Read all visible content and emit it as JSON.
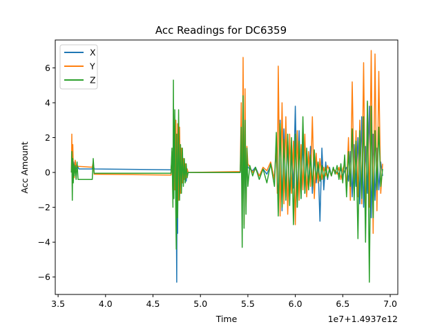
{
  "chart_data": {
    "type": "line",
    "title": "Acc Readings for DC6359",
    "xlabel": "Time",
    "ylabel": "Acc Amount",
    "x_offset_label": "1e7+1.4937e12",
    "xlim": [
      3.47,
      7.08
    ],
    "ylim": [
      -7.0,
      7.6
    ],
    "x_ticks": [
      3.5,
      4.0,
      4.5,
      5.0,
      5.5,
      6.0,
      6.5,
      7.0
    ],
    "x_tick_labels": [
      "3.5",
      "4.0",
      "4.5",
      "5.0",
      "5.5",
      "6.0",
      "6.5",
      "7.0"
    ],
    "y_ticks": [
      -6,
      -4,
      -2,
      0,
      2,
      4,
      6
    ],
    "y_tick_labels": [
      "−6",
      "−4",
      "−2",
      "0",
      "2",
      "4",
      "6"
    ],
    "grid": false,
    "legend_position": "upper-left",
    "series": [
      {
        "name": "X",
        "color": "#1f77b4",
        "x": [
          3.64,
          3.65,
          3.655,
          3.66,
          3.665,
          3.67,
          3.68,
          3.69,
          3.7,
          3.71,
          3.72,
          3.86,
          3.87,
          3.88,
          4.69,
          4.7,
          4.71,
          4.72,
          4.73,
          4.74,
          4.745,
          4.75,
          4.755,
          4.76,
          4.765,
          4.77,
          4.78,
          4.79,
          4.8,
          4.81,
          4.82,
          4.83,
          4.84,
          4.85,
          4.86,
          4.87,
          5.42,
          5.43,
          5.44,
          5.45,
          5.46,
          5.47,
          5.48,
          5.49,
          5.5,
          5.52,
          5.55,
          5.58,
          5.62,
          5.66,
          5.7,
          5.74,
          5.78,
          5.8,
          5.82,
          5.84,
          5.86,
          5.88,
          5.9,
          5.92,
          5.94,
          5.96,
          5.98,
          6.0,
          6.02,
          6.04,
          6.06,
          6.08,
          6.1,
          6.12,
          6.14,
          6.16,
          6.18,
          6.2,
          6.22,
          6.24,
          6.26,
          6.28,
          6.3,
          6.32,
          6.34,
          6.36,
          6.38,
          6.4,
          6.42,
          6.44,
          6.46,
          6.48,
          6.5,
          6.52,
          6.54,
          6.56,
          6.58,
          6.6,
          6.62,
          6.64,
          6.66,
          6.68,
          6.7,
          6.72,
          6.74,
          6.76,
          6.78,
          6.8,
          6.82,
          6.84,
          6.86,
          6.88,
          6.9,
          6.92
        ],
        "y": [
          0.0,
          0.4,
          0.9,
          -0.5,
          0.6,
          0.3,
          0.5,
          0.2,
          0.4,
          0.3,
          0.2,
          0.2,
          0.5,
          0.2,
          0.15,
          0.8,
          -1.2,
          1.4,
          -0.8,
          3.0,
          -2.0,
          -6.3,
          1.8,
          -3.5,
          2.5,
          -1.5,
          1.2,
          -0.8,
          1.0,
          -0.6,
          0.7,
          -0.3,
          0.4,
          -0.5,
          0.2,
          0.0,
          0.0,
          2.0,
          -1.8,
          2.6,
          -2.2,
          1.5,
          -1.0,
          0.6,
          0.3,
          0.2,
          0.1,
          0.3,
          -0.2,
          0.2,
          -0.1,
          0.4,
          -0.3,
          1.2,
          -1.8,
          3.0,
          -2.2,
          2.5,
          -1.4,
          1.8,
          -1.6,
          1.2,
          -0.9,
          3.8,
          -2.0,
          2.4,
          -1.5,
          1.9,
          -1.2,
          1.0,
          -0.8,
          1.5,
          -1.2,
          0.9,
          -0.6,
          0.4,
          -2.8,
          1.4,
          -1.0,
          0.6,
          -0.4,
          0.3,
          -0.2,
          0.2,
          0.1,
          0.0,
          -0.1,
          0.2,
          -0.2,
          0.1,
          0.3,
          -0.5,
          1.2,
          -1.4,
          1.6,
          -0.8,
          2.0,
          -1.8,
          3.2,
          -2.0,
          1.5,
          -1.2,
          3.8,
          -2.6,
          2.2,
          -1.6,
          1.4,
          -1.0,
          0.6,
          -0.2
        ]
      },
      {
        "name": "Y",
        "color": "#ff7f0e",
        "x": [
          3.64,
          3.645,
          3.65,
          3.655,
          3.66,
          3.67,
          3.68,
          3.69,
          3.7,
          3.71,
          3.86,
          3.87,
          3.88,
          4.69,
          4.7,
          4.71,
          4.72,
          4.73,
          4.74,
          4.75,
          4.76,
          4.77,
          4.78,
          4.79,
          4.8,
          4.81,
          4.82,
          4.83,
          4.84,
          4.85,
          4.86,
          4.87,
          5.42,
          5.43,
          5.44,
          5.45,
          5.46,
          5.47,
          5.48,
          5.49,
          5.5,
          5.52,
          5.55,
          5.58,
          5.62,
          5.66,
          5.7,
          5.74,
          5.78,
          5.8,
          5.81,
          5.82,
          5.84,
          5.86,
          5.88,
          5.9,
          5.92,
          5.94,
          5.96,
          5.98,
          6.0,
          6.02,
          6.04,
          6.06,
          6.08,
          6.1,
          6.12,
          6.14,
          6.16,
          6.18,
          6.2,
          6.22,
          6.24,
          6.26,
          6.28,
          6.3,
          6.32,
          6.34,
          6.36,
          6.38,
          6.4,
          6.42,
          6.44,
          6.46,
          6.48,
          6.5,
          6.52,
          6.54,
          6.56,
          6.58,
          6.6,
          6.62,
          6.64,
          6.66,
          6.68,
          6.7,
          6.72,
          6.74,
          6.76,
          6.78,
          6.8,
          6.82,
          6.84,
          6.86,
          6.88,
          6.9,
          6.92
        ],
        "y": [
          0.0,
          2.2,
          -0.8,
          1.6,
          0.4,
          -0.3,
          0.7,
          0.3,
          0.4,
          0.35,
          0.3,
          0.6,
          -0.1,
          -0.15,
          1.2,
          -1.5,
          2.2,
          -1.0,
          3.0,
          -1.8,
          2.8,
          -1.6,
          2.6,
          -1.2,
          1.4,
          -0.6,
          0.8,
          -0.4,
          0.5,
          -0.3,
          0.2,
          0.0,
          0.05,
          4.0,
          -2.5,
          6.6,
          -3.0,
          4.8,
          -2.0,
          1.5,
          0.5,
          0.3,
          0.0,
          0.2,
          -0.2,
          0.3,
          0.1,
          0.6,
          -0.4,
          1.8,
          -1.2,
          6.1,
          -2.5,
          4.0,
          -1.8,
          3.2,
          -2.4,
          2.2,
          -1.2,
          1.8,
          -3.0,
          2.4,
          -1.6,
          1.6,
          -1.0,
          2.2,
          -1.4,
          1.2,
          -0.8,
          3.2,
          -1.5,
          1.1,
          -0.6,
          0.8,
          -0.4,
          0.3,
          -0.2,
          0.4,
          0.1,
          -0.2,
          0.2,
          0.1,
          -0.1,
          0.3,
          -0.4,
          0.2,
          0.5,
          -0.8,
          2.0,
          -1.6,
          5.2,
          -1.2,
          2.4,
          -1.4,
          3.0,
          -1.8,
          6.3,
          -3.2,
          4.0,
          -2.0,
          7.0,
          -3.5,
          6.8,
          -2.2,
          5.8,
          -1.2,
          0.5
        ]
      },
      {
        "name": "Z",
        "color": "#2ca02c",
        "x": [
          3.64,
          3.645,
          3.65,
          3.655,
          3.66,
          3.665,
          3.67,
          3.68,
          3.69,
          3.7,
          3.71,
          3.72,
          3.86,
          3.87,
          3.88,
          4.69,
          4.7,
          4.71,
          4.715,
          4.72,
          4.73,
          4.74,
          4.745,
          4.75,
          4.76,
          4.77,
          4.78,
          4.79,
          4.8,
          4.81,
          4.82,
          4.83,
          4.84,
          4.85,
          4.86,
          4.87,
          5.42,
          5.43,
          5.44,
          5.45,
          5.46,
          5.47,
          5.48,
          5.49,
          5.5,
          5.52,
          5.55,
          5.58,
          5.62,
          5.66,
          5.7,
          5.74,
          5.78,
          5.8,
          5.82,
          5.84,
          5.86,
          5.88,
          5.9,
          5.92,
          5.94,
          5.96,
          5.98,
          6.0,
          6.02,
          6.04,
          6.06,
          6.08,
          6.1,
          6.12,
          6.14,
          6.16,
          6.18,
          6.2,
          6.22,
          6.24,
          6.26,
          6.28,
          6.3,
          6.32,
          6.34,
          6.36,
          6.38,
          6.4,
          6.42,
          6.44,
          6.46,
          6.48,
          6.5,
          6.52,
          6.54,
          6.56,
          6.58,
          6.6,
          6.62,
          6.64,
          6.66,
          6.68,
          6.7,
          6.72,
          6.74,
          6.76,
          6.78,
          6.8,
          6.82,
          6.84,
          6.86,
          6.88,
          6.9,
          6.92
        ],
        "y": [
          0.0,
          1.2,
          -1.6,
          0.8,
          -0.6,
          0.5,
          -0.2,
          0.4,
          -0.4,
          0.6,
          -0.4,
          -0.4,
          -0.4,
          0.8,
          -0.05,
          -0.05,
          1.4,
          -2.0,
          5.3,
          -1.5,
          3.6,
          -2.2,
          -4.4,
          2.2,
          -2.6,
          3.6,
          -1.6,
          1.6,
          -1.2,
          1.4,
          -0.8,
          0.8,
          -0.6,
          0.5,
          -0.3,
          0.0,
          0.0,
          2.6,
          -4.3,
          4.4,
          -3.2,
          3.0,
          -2.4,
          1.4,
          -0.8,
          0.4,
          -0.2,
          0.3,
          -0.4,
          0.2,
          -0.6,
          0.5,
          -0.8,
          2.3,
          -2.5,
          2.8,
          -2.0,
          1.9,
          -1.6,
          2.2,
          -1.9,
          2.0,
          -3.0,
          2.2,
          -2.0,
          1.8,
          -1.5,
          3.2,
          -1.2,
          1.4,
          -1.0,
          1.0,
          -0.8,
          1.3,
          -0.4,
          0.6,
          -0.5,
          0.4,
          -0.4,
          0.3,
          -0.3,
          0.2,
          -0.2,
          0.3,
          -0.1,
          0.4,
          -0.4,
          0.5,
          -0.6,
          1.0,
          -1.4,
          1.2,
          -0.8,
          2.5,
          -1.6,
          1.8,
          -3.8,
          2.4,
          -1.5,
          3.2,
          -4.0,
          4.1,
          -6.3,
          3.8,
          -2.6,
          2.4,
          -1.0,
          2.6,
          -0.8,
          0.2
        ]
      }
    ]
  }
}
